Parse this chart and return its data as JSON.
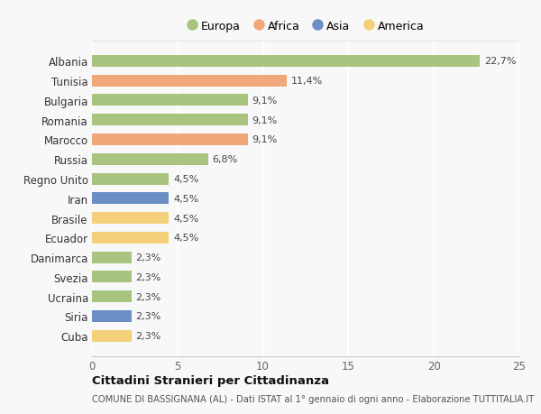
{
  "countries": [
    "Albania",
    "Tunisia",
    "Bulgaria",
    "Romania",
    "Marocco",
    "Russia",
    "Regno Unito",
    "Iran",
    "Brasile",
    "Ecuador",
    "Danimarca",
    "Svezia",
    "Ucraina",
    "Siria",
    "Cuba"
  ],
  "values": [
    22.7,
    11.4,
    9.1,
    9.1,
    9.1,
    6.8,
    4.5,
    4.5,
    4.5,
    4.5,
    2.3,
    2.3,
    2.3,
    2.3,
    2.3
  ],
  "labels": [
    "22,7%",
    "11,4%",
    "9,1%",
    "9,1%",
    "9,1%",
    "6,8%",
    "4,5%",
    "4,5%",
    "4,5%",
    "4,5%",
    "2,3%",
    "2,3%",
    "2,3%",
    "2,3%",
    "2,3%"
  ],
  "continents": [
    "Europa",
    "Africa",
    "Europa",
    "Europa",
    "Africa",
    "Europa",
    "Europa",
    "Asia",
    "America",
    "America",
    "Europa",
    "Europa",
    "Europa",
    "Asia",
    "America"
  ],
  "continent_colors": {
    "Europa": "#a8c47e",
    "Africa": "#f0a87a",
    "Asia": "#6b8fc4",
    "America": "#f5d07a"
  },
  "legend_order": [
    "Europa",
    "Africa",
    "Asia",
    "America"
  ],
  "xlim": [
    0,
    25
  ],
  "xticks": [
    0,
    5,
    10,
    15,
    20,
    25
  ],
  "title": "Cittadini Stranieri per Cittadinanza",
  "subtitle": "COMUNE DI BASSIGNANA (AL) - Dati ISTAT al 1° gennaio di ogni anno - Elaborazione TUTTITALIA.IT",
  "bg_color": "#f8f8f8",
  "grid_color": "#ffffff",
  "bar_height": 0.6
}
